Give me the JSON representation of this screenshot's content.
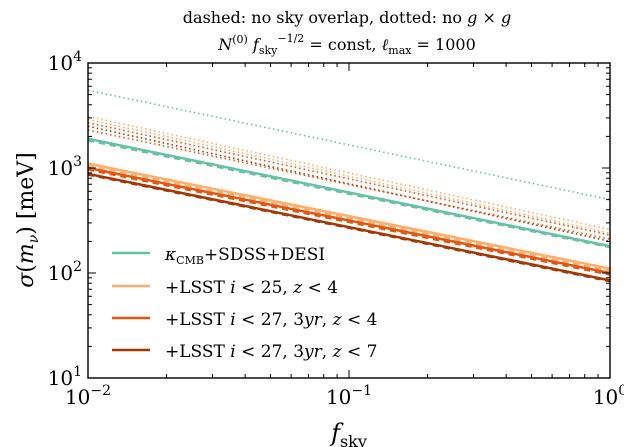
{
  "chart_data": {
    "type": "line",
    "title_line1": "dashed: no sky overlap, dotted: no g × g",
    "title_line2": "N(0) f_sky^(−1/2) = const,  ℓ_max = 1000",
    "xlabel": "f_sky",
    "ylabel": "σ(m_ν) [meV]",
    "xscale": "log",
    "yscale": "log",
    "xlim": [
      0.01,
      1
    ],
    "ylim": [
      10,
      10000
    ],
    "xticks": [
      {
        "value": 0.01,
        "label": "10^-2"
      },
      {
        "value": 0.1,
        "label": "10^-1"
      },
      {
        "value": 1,
        "label": "10^0"
      }
    ],
    "yticks": [
      {
        "value": 10,
        "label": "10^1"
      },
      {
        "value": 100,
        "label": "10^2"
      },
      {
        "value": 1000,
        "label": "10^3"
      },
      {
        "value": 10000,
        "label": "10^4"
      }
    ],
    "legend_position": "lower-left",
    "line_styles": {
      "solid": "baseline",
      "dashed": "no sky overlap",
      "dotted": "no g × g"
    },
    "series": [
      {
        "name": "κ_CMB+SDSS+DESI",
        "color": "#66c2a5",
        "solid": {
          "x": [
            0.01,
            1
          ],
          "y": [
            1900,
            180
          ]
        },
        "dashed": {
          "x": [
            0.01,
            1
          ],
          "y": [
            1820,
            175
          ]
        },
        "dotted": {
          "x": [
            0.01,
            1
          ],
          "y": [
            5500,
            500
          ]
        }
      },
      {
        "name": "+LSST i<25, z<4",
        "color": "#fdae6b",
        "solid": {
          "x": [
            0.01,
            1
          ],
          "y": [
            1100,
            110
          ]
        },
        "dashed": {
          "x": [
            0.01,
            1
          ],
          "y": [
            1050,
            105
          ]
        },
        "dotted": {
          "x": [
            0.01,
            1
          ],
          "y": [
            3100,
            260
          ]
        }
      },
      {
        "name": "+LSST i<27, 3yr, z<4",
        "color": "#e6550d",
        "solid": {
          "x": [
            0.01,
            1
          ],
          "y": [
            1000,
            100
          ]
        },
        "dashed": {
          "x": [
            0.01,
            1
          ],
          "y": [
            960,
            96
          ]
        },
        "dotted": {
          "x": [
            0.01,
            1
          ],
          "y": [
            2700,
            230
          ]
        }
      },
      {
        "name": "+LSST i<27, 3yr, z<7",
        "color": "#a63603",
        "solid": {
          "x": [
            0.01,
            1
          ],
          "y": [
            880,
            85
          ]
        },
        "dashed": {
          "x": [
            0.01,
            1
          ],
          "y": [
            860,
            83
          ]
        },
        "dotted": {
          "x": [
            0.01,
            1
          ],
          "y": [
            2500,
            200
          ]
        }
      }
    ],
    "extra_dotted": [
      {
        "color": "#fdae6b",
        "x": [
          0.01,
          1
        ],
        "y": [
          2900,
          240
        ]
      },
      {
        "color": "#e6550d",
        "x": [
          0.01,
          1
        ],
        "y": [
          2300,
          210
        ]
      }
    ]
  }
}
